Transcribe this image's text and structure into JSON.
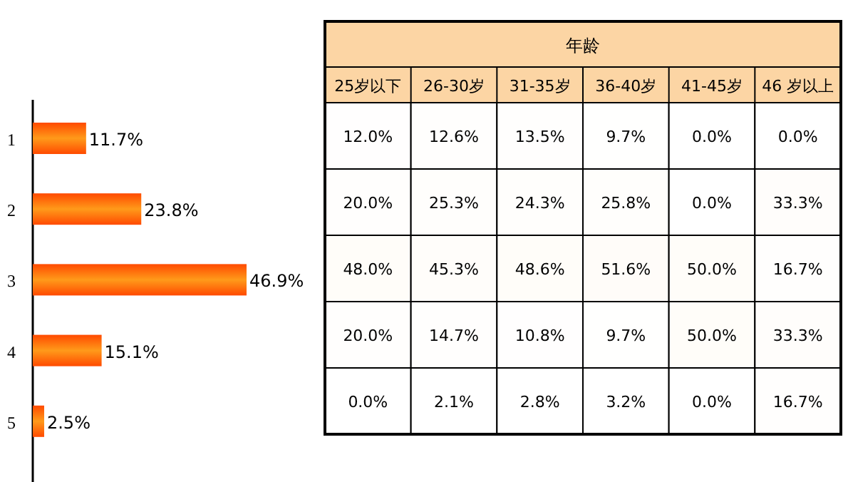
{
  "chart_data": [
    {
      "type": "bar",
      "orientation": "horizontal",
      "relative": false,
      "categories": [
        "1",
        "2",
        "3",
        "4",
        "5"
      ],
      "values": [
        11.7,
        23.8,
        46.9,
        15.1,
        2.5
      ],
      "value_labels": [
        "11.7%",
        "23.8%",
        "46.9%",
        "15.1%",
        "2.5%"
      ],
      "color": "#ff4a00"
    },
    {
      "type": "heatmap",
      "title": "年龄",
      "categories": [
        "25岁以下",
        "26-30岁",
        "31-35岁",
        "36-40岁",
        "41-45岁",
        "46 岁以上"
      ],
      "y_categories": [
        null,
        null,
        null,
        null,
        null
      ],
      "cells": [
        [
          12.0,
          12.6,
          13.5,
          9.7,
          0.0,
          0.0
        ],
        [
          20.0,
          25.3,
          24.3,
          25.8,
          0.0,
          33.3
        ],
        [
          48.0,
          45.3,
          48.6,
          51.6,
          50.0,
          16.7
        ],
        [
          20.0,
          14.7,
          10.8,
          9.7,
          50.0,
          33.3
        ],
        [
          0.0,
          2.1,
          2.8,
          3.2,
          0.0,
          16.7
        ]
      ],
      "cell_labels": [
        [
          "12.0%",
          "12.6%",
          "13.5%",
          "9.7%",
          "0.0%",
          "0.0%"
        ],
        [
          "20.0%",
          "25.3%",
          "24.3%",
          "25.8%",
          "0.0%",
          "33.3%"
        ],
        [
          "48.0%",
          "45.3%",
          "48.6%",
          "51.6%",
          "50.0%",
          "16.7%"
        ],
        [
          "20.0%",
          "14.7%",
          "10.8%",
          "9.7%",
          "50.0%",
          "33.3%"
        ],
        [
          "0.0%",
          "2.1%",
          "2.8%",
          "3.2%",
          "0.0%",
          "16.7%"
        ]
      ]
    }
  ]
}
